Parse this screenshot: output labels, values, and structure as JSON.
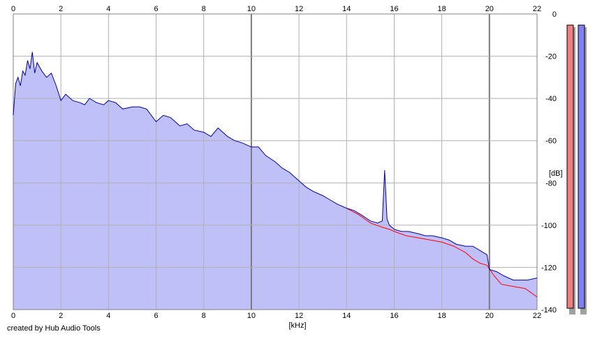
{
  "footer": {
    "credit": "created by Hub Audio Tools"
  },
  "chart_data": {
    "type": "area",
    "xlabel": "[kHz]",
    "ylabel": "[dB]",
    "xlim": [
      0,
      22
    ],
    "ylim": [
      -140,
      0
    ],
    "x_ticks": [
      "0",
      "2",
      "4",
      "6",
      "8",
      "10",
      "12",
      "14",
      "16",
      "18",
      "20",
      "22"
    ],
    "y_ticks": [
      "0",
      "-20",
      "-40",
      "-60",
      "-80",
      "-100",
      "-120",
      "-140"
    ],
    "grid": true,
    "colors": {
      "left": "#ff0000",
      "right": "#0000aa",
      "fill": "#c0c0f8",
      "meter_left": "#f08080",
      "meter_right": "#8080f0"
    },
    "series": [
      {
        "channel": "right",
        "x": [
          0,
          0.1,
          0.2,
          0.3,
          0.4,
          0.5,
          0.6,
          0.7,
          0.8,
          0.9,
          1.0,
          1.2,
          1.4,
          1.6,
          1.8,
          2.0,
          2.2,
          2.5,
          2.8,
          3.0,
          3.2,
          3.5,
          3.8,
          4.0,
          4.3,
          4.6,
          5.0,
          5.3,
          5.6,
          6.0,
          6.3,
          6.6,
          7.0,
          7.3,
          7.6,
          8.0,
          8.3,
          8.6,
          9.0,
          9.3,
          9.6,
          10.0,
          10.3,
          10.6,
          11.0,
          11.3,
          11.6,
          12.0,
          12.3,
          12.6,
          13.0,
          13.3,
          13.6,
          14.0,
          14.3,
          14.6,
          15.0,
          15.3,
          15.5,
          15.6,
          15.7,
          15.8,
          16.0,
          16.3,
          16.6,
          17.0,
          17.3,
          17.6,
          18.0,
          18.3,
          18.6,
          19.0,
          19.3,
          19.6,
          19.9,
          20.0,
          20.3,
          20.6,
          21.0,
          21.3,
          21.6,
          22.0
        ],
        "y": [
          -48,
          -33,
          -30,
          -34,
          -27,
          -29,
          -22,
          -26,
          -18,
          -28,
          -23,
          -27,
          -30,
          -28,
          -34,
          -41,
          -38,
          -41,
          -42,
          -43,
          -40,
          -42,
          -43,
          -41,
          -42,
          -45,
          -44,
          -44,
          -45,
          -51,
          -48,
          -49,
          -53,
          -52,
          -55,
          -56,
          -58,
          -54,
          -58,
          -60,
          -61,
          -63,
          -63,
          -67,
          -70,
          -73,
          -75,
          -79,
          -82,
          -84,
          -86,
          -88,
          -90,
          -92,
          -93,
          -95,
          -98,
          -99,
          -98,
          -74,
          -97,
          -100,
          -102,
          -103,
          -103,
          -104,
          -105,
          -105,
          -106,
          -107,
          -109,
          -110,
          -110,
          -112,
          -114,
          -121,
          -122,
          -124,
          -126,
          -126,
          -126,
          -125
        ]
      },
      {
        "channel": "left",
        "x": [
          14.0,
          14.5,
          15.0,
          15.5,
          15.8,
          16.0,
          16.5,
          17.0,
          17.5,
          18.0,
          18.5,
          19.0,
          19.3,
          19.6,
          19.9,
          20.2,
          20.5,
          21.0,
          21.5,
          22.0
        ],
        "y": [
          -92,
          -95,
          -99,
          -101,
          -102,
          -103,
          -105,
          -106,
          -107,
          -108,
          -110,
          -113,
          -116,
          -118,
          -119,
          -124,
          -128,
          -129,
          -130,
          -134
        ]
      }
    ]
  }
}
